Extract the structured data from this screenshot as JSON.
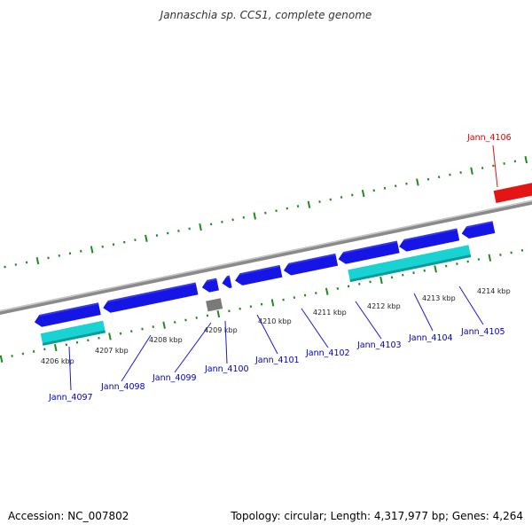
{
  "title": "Jannaschia sp. CCS1, complete genome",
  "footer": {
    "accession": "Accession: NC_007802",
    "summary": "Topology: circular; Length: 4,317,977 bp; Genes: 4,264"
  },
  "colors": {
    "backbone": "#8a8a8a",
    "tick": "#1f8a1f",
    "cds_forward": "#1515e6",
    "cds_reverse": "#e61515",
    "rna": "#19d3d3",
    "pseudogene": "#7a7a7a",
    "label_forward": "#0000c0",
    "label_reverse": "#e00000"
  },
  "kbp_labels": [
    {
      "text": "4206 kbp",
      "kbp": 4206
    },
    {
      "text": "4207 kbp",
      "kbp": 4207
    },
    {
      "text": "4208 kbp",
      "kbp": 4208
    },
    {
      "text": "4209 kbp",
      "kbp": 4209
    },
    {
      "text": "4210 kbp",
      "kbp": 4210
    },
    {
      "text": "4211 kbp",
      "kbp": 4211
    },
    {
      "text": "4212 kbp",
      "kbp": 4212
    },
    {
      "text": "4213 kbp",
      "kbp": 4213
    },
    {
      "text": "4214 kbp",
      "kbp": 4214
    }
  ],
  "gene_labels": [
    {
      "text": "Jann_4097",
      "strand": "forward"
    },
    {
      "text": "Jann_4098",
      "strand": "forward"
    },
    {
      "text": "Jann_4099",
      "strand": "forward"
    },
    {
      "text": "Jann_4100",
      "strand": "forward"
    },
    {
      "text": "Jann_4101",
      "strand": "forward"
    },
    {
      "text": "Jann_4102",
      "strand": "forward"
    },
    {
      "text": "Jann_4103",
      "strand": "forward"
    },
    {
      "text": "Jann_4104",
      "strand": "forward"
    },
    {
      "text": "Jann_4105",
      "strand": "forward"
    },
    {
      "text": "Jann_4106",
      "strand": "reverse"
    }
  ]
}
